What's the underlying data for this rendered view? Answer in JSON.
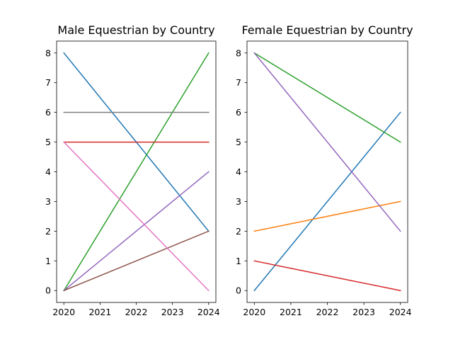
{
  "chart_data": [
    {
      "type": "line",
      "title": "Male Equestrian by Country",
      "xlabel": "",
      "ylabel": "",
      "x": [
        2020,
        2024
      ],
      "xticks": [
        "2020",
        "2021",
        "2022",
        "2023",
        "2024"
      ],
      "yticks": [
        "0",
        "1",
        "2",
        "3",
        "4",
        "5",
        "6",
        "7",
        "8"
      ],
      "xlim": [
        2019.8,
        2024.2
      ],
      "ylim": [
        -0.4,
        8.4
      ],
      "grid": false,
      "series": [
        {
          "color": "#1f77b4",
          "values": [
            8,
            2
          ]
        },
        {
          "color": "#2ca02c",
          "values": [
            0,
            8
          ]
        },
        {
          "color": "#d62728",
          "values": [
            5,
            5
          ]
        },
        {
          "color": "#9467bd",
          "values": [
            0,
            4
          ]
        },
        {
          "color": "#8c564b",
          "values": [
            0,
            2
          ]
        },
        {
          "color": "#e377c2",
          "values": [
            5,
            0
          ]
        },
        {
          "color": "#7f7f7f",
          "values": [
            6,
            6
          ]
        }
      ]
    },
    {
      "type": "line",
      "title": "Female Equestrian by Country",
      "xlabel": "",
      "ylabel": "",
      "x": [
        2020,
        2024
      ],
      "xticks": [
        "2020",
        "2021",
        "2022",
        "2023",
        "2024"
      ],
      "yticks": [
        "0",
        "1",
        "2",
        "3",
        "4",
        "5",
        "6",
        "7",
        "8"
      ],
      "xlim": [
        2019.8,
        2024.2
      ],
      "ylim": [
        -0.4,
        8.4
      ],
      "grid": false,
      "series": [
        {
          "color": "#1f77b4",
          "values": [
            0,
            6
          ]
        },
        {
          "color": "#ff7f0e",
          "values": [
            2,
            3
          ]
        },
        {
          "color": "#2ca02c",
          "values": [
            8,
            5
          ]
        },
        {
          "color": "#d62728",
          "values": [
            1,
            0
          ]
        },
        {
          "color": "#9467bd",
          "values": [
            8,
            2
          ]
        }
      ]
    }
  ]
}
